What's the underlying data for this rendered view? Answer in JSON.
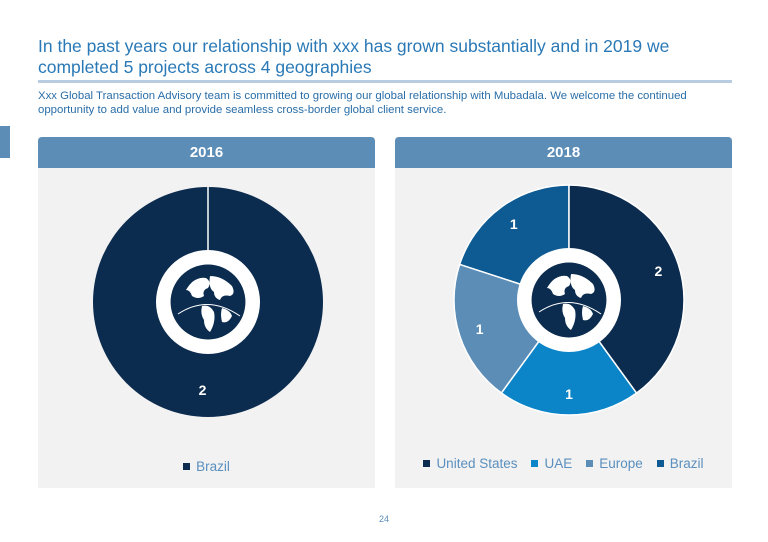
{
  "page": {
    "title": "In the past years our relationship with xxx  has grown substantially and in 2019 we completed 5 projects across 4 geographies",
    "subtitle": "Xxx Global Transaction Advisory team is committed to growing our global relationship with Mubadala. We welcome the continued opportunity to add value and provide seamless cross-border global client service.",
    "page_number": "24"
  },
  "colors": {
    "title": "#2a79b6",
    "header_bg": "#5b8db7",
    "panel_bg": "#f2f2f2",
    "united_states": "#0b2c4f",
    "uae": "#0b84c8",
    "europe": "#5b8db7",
    "brazil": "#0e5b94"
  },
  "chart_data": [
    {
      "type": "pie",
      "variant": "donut",
      "title": "2016",
      "categories": [
        "Brazil"
      ],
      "values": [
        2
      ],
      "colors": [
        "#0b2c4f"
      ],
      "center_icon": "globe-icon",
      "legend_position": "bottom"
    },
    {
      "type": "pie",
      "variant": "donut",
      "title": "2018",
      "categories": [
        "United States",
        "UAE",
        "Europe",
        "Brazil"
      ],
      "values": [
        2,
        1,
        1,
        1
      ],
      "colors": [
        "#0b2c4f",
        "#0b84c8",
        "#5b8db7",
        "#0e5b94"
      ],
      "center_icon": "globe-icon",
      "legend_position": "bottom"
    }
  ]
}
